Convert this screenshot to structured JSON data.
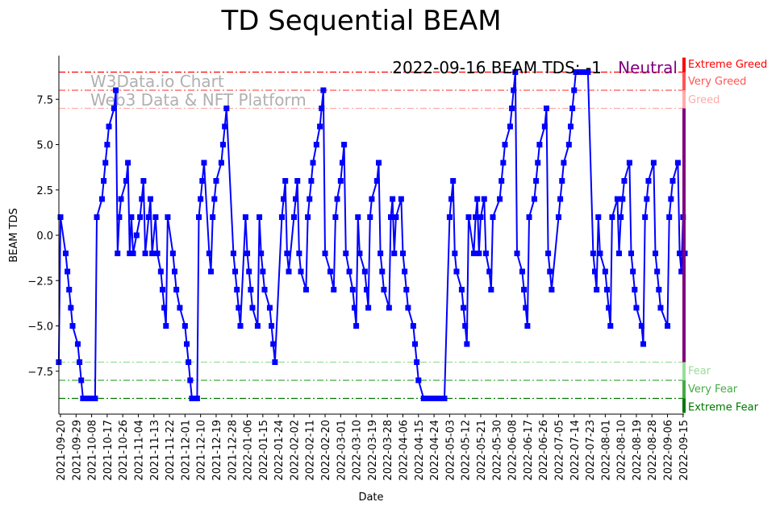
{
  "chart_data": {
    "type": "line",
    "title": "TD Sequential BEAM",
    "xlabel": "Date",
    "ylabel": "BEAM TDS",
    "ylim": [
      -9.8,
      9.8
    ],
    "yticks": [
      -7.5,
      -5.0,
      -2.5,
      0.0,
      2.5,
      5.0,
      7.5
    ],
    "ytick_labels": [
      "−7.5",
      "−5.0",
      "−2.5",
      "0.0",
      "2.5",
      "5.0",
      "7.5"
    ],
    "x_unit": "days since 2021-09-20",
    "xlim": [
      -1,
      362
    ],
    "xtick_days": [
      0,
      9,
      18,
      27,
      36,
      45,
      54,
      63,
      72,
      81,
      90,
      99,
      108,
      117,
      126,
      135,
      144,
      153,
      162,
      171,
      180,
      189,
      198,
      207,
      216,
      225,
      234,
      243,
      252,
      261,
      270,
      279,
      288,
      297,
      306,
      315,
      324,
      333,
      342,
      351,
      360
    ],
    "xtick_labels": [
      "2021-09-20",
      "2021-09-29",
      "2021-10-08",
      "2021-10-17",
      "2021-10-26",
      "2021-11-04",
      "2021-11-13",
      "2021-11-22",
      "2021-12-01",
      "2021-12-10",
      "2021-12-19",
      "2021-12-28",
      "2022-01-06",
      "2022-01-15",
      "2022-01-24",
      "2022-02-02",
      "2022-02-11",
      "2022-02-20",
      "2022-03-01",
      "2022-03-10",
      "2022-03-19",
      "2022-03-28",
      "2022-04-06",
      "2022-04-15",
      "2022-04-24",
      "2022-05-03",
      "2022-05-12",
      "2022-05-21",
      "2022-05-30",
      "2022-06-08",
      "2022-06-17",
      "2022-06-26",
      "2022-07-05",
      "2022-07-14",
      "2022-07-23",
      "2022-08-01",
      "2022-08-10",
      "2022-08-19",
      "2022-08-28",
      "2022-09-06",
      "2022-09-15"
    ],
    "series": [
      {
        "name": "BEAM TDS",
        "color": "#0000ff",
        "marker": "square",
        "points": [
          [
            -1,
            -7
          ],
          [
            0,
            1
          ],
          [
            3,
            -1
          ],
          [
            4,
            -2
          ],
          [
            5,
            -3
          ],
          [
            6,
            -4
          ],
          [
            7,
            -5
          ],
          [
            10,
            -6
          ],
          [
            11,
            -7
          ],
          [
            12,
            -8
          ],
          [
            13,
            -9
          ],
          [
            14,
            -9
          ],
          [
            15,
            -9
          ],
          [
            16,
            -9
          ],
          [
            17,
            -9
          ],
          [
            18,
            -9
          ],
          [
            19,
            -9
          ],
          [
            20,
            -9
          ],
          [
            21,
            1
          ],
          [
            24,
            2
          ],
          [
            25,
            3
          ],
          [
            26,
            4
          ],
          [
            27,
            5
          ],
          [
            28,
            6
          ],
          [
            31,
            7
          ],
          [
            32,
            8
          ],
          [
            33,
            -1
          ],
          [
            34,
            1
          ],
          [
            35,
            2
          ],
          [
            38,
            3
          ],
          [
            39,
            4
          ],
          [
            40,
            -1
          ],
          [
            41,
            1
          ],
          [
            42,
            -1
          ],
          [
            44,
            0
          ],
          [
            46,
            1
          ],
          [
            47,
            2
          ],
          [
            48,
            3
          ],
          [
            49,
            -1
          ],
          [
            51,
            1
          ],
          [
            52,
            2
          ],
          [
            53,
            -1
          ],
          [
            55,
            1
          ],
          [
            56,
            -1
          ],
          [
            58,
            -2
          ],
          [
            59,
            -3
          ],
          [
            60,
            -4
          ],
          [
            61,
            -5
          ],
          [
            62,
            1
          ],
          [
            65,
            -1
          ],
          [
            66,
            -2
          ],
          [
            67,
            -3
          ],
          [
            69,
            -4
          ],
          [
            72,
            -5
          ],
          [
            73,
            -6
          ],
          [
            74,
            -7
          ],
          [
            75,
            -8
          ],
          [
            76,
            -9
          ],
          [
            77,
            -9
          ],
          [
            78,
            -9
          ],
          [
            79,
            -9
          ],
          [
            80,
            1
          ],
          [
            81,
            2
          ],
          [
            82,
            3
          ],
          [
            83,
            4
          ],
          [
            86,
            -1
          ],
          [
            87,
            -2
          ],
          [
            88,
            1
          ],
          [
            89,
            2
          ],
          [
            90,
            3
          ],
          [
            93,
            4
          ],
          [
            94,
            5
          ],
          [
            95,
            6
          ],
          [
            96,
            7
          ],
          [
            100,
            -1
          ],
          [
            101,
            -2
          ],
          [
            102,
            -3
          ],
          [
            103,
            -4
          ],
          [
            104,
            -5
          ],
          [
            107,
            1
          ],
          [
            108,
            -1
          ],
          [
            109,
            -2
          ],
          [
            110,
            -3
          ],
          [
            111,
            -4
          ],
          [
            114,
            -5
          ],
          [
            115,
            1
          ],
          [
            116,
            -1
          ],
          [
            117,
            -2
          ],
          [
            118,
            -3
          ],
          [
            121,
            -4
          ],
          [
            122,
            -5
          ],
          [
            123,
            -6
          ],
          [
            124,
            -7
          ],
          [
            128,
            1
          ],
          [
            129,
            2
          ],
          [
            130,
            3
          ],
          [
            131,
            -1
          ],
          [
            132,
            -2
          ],
          [
            135,
            1
          ],
          [
            136,
            2
          ],
          [
            137,
            3
          ],
          [
            138,
            -1
          ],
          [
            139,
            -2
          ],
          [
            142,
            -3
          ],
          [
            143,
            1
          ],
          [
            144,
            2
          ],
          [
            145,
            3
          ],
          [
            146,
            4
          ],
          [
            148,
            5
          ],
          [
            150,
            6
          ],
          [
            151,
            7
          ],
          [
            152,
            8
          ],
          [
            153,
            -1
          ],
          [
            156,
            -2
          ],
          [
            158,
            -3
          ],
          [
            159,
            1
          ],
          [
            160,
            2
          ],
          [
            162,
            3
          ],
          [
            163,
            4
          ],
          [
            164,
            5
          ],
          [
            165,
            -1
          ],
          [
            167,
            -2
          ],
          [
            169,
            -3
          ],
          [
            170,
            -4
          ],
          [
            171,
            -5
          ],
          [
            172,
            1
          ],
          [
            173,
            -1
          ],
          [
            176,
            -2
          ],
          [
            177,
            -3
          ],
          [
            178,
            -4
          ],
          [
            179,
            1
          ],
          [
            180,
            2
          ],
          [
            183,
            3
          ],
          [
            184,
            4
          ],
          [
            185,
            -1
          ],
          [
            186,
            -2
          ],
          [
            187,
            -3
          ],
          [
            190,
            -4
          ],
          [
            191,
            1
          ],
          [
            192,
            2
          ],
          [
            193,
            -1
          ],
          [
            194,
            1
          ],
          [
            197,
            2
          ],
          [
            198,
            -1
          ],
          [
            199,
            -2
          ],
          [
            200,
            -3
          ],
          [
            201,
            -4
          ],
          [
            204,
            -5
          ],
          [
            205,
            -6
          ],
          [
            206,
            -7
          ],
          [
            207,
            -8
          ],
          [
            210,
            -9
          ],
          [
            212,
            -9
          ],
          [
            214,
            -9
          ],
          [
            216,
            -9
          ],
          [
            218,
            -9
          ],
          [
            220,
            -9
          ],
          [
            222,
            -9
          ],
          [
            225,
            1
          ],
          [
            226,
            2
          ],
          [
            227,
            3
          ],
          [
            228,
            -1
          ],
          [
            229,
            -2
          ],
          [
            232,
            -3
          ],
          [
            233,
            -4
          ],
          [
            234,
            -5
          ],
          [
            235,
            -6
          ],
          [
            236,
            1
          ],
          [
            239,
            -1
          ],
          [
            240,
            1
          ],
          [
            241,
            2
          ],
          [
            242,
            -1
          ],
          [
            243,
            1
          ],
          [
            245,
            2
          ],
          [
            246,
            -1
          ],
          [
            248,
            -2
          ],
          [
            249,
            -3
          ],
          [
            250,
            1
          ],
          [
            254,
            2
          ],
          [
            255,
            3
          ],
          [
            256,
            4
          ],
          [
            257,
            5
          ],
          [
            260,
            6
          ],
          [
            261,
            7
          ],
          [
            262,
            8
          ],
          [
            263,
            9
          ],
          [
            264,
            -1
          ],
          [
            267,
            -2
          ],
          [
            268,
            -3
          ],
          [
            269,
            -4
          ],
          [
            270,
            -5
          ],
          [
            271,
            1
          ],
          [
            274,
            2
          ],
          [
            275,
            3
          ],
          [
            276,
            4
          ],
          [
            277,
            5
          ],
          [
            280,
            6
          ],
          [
            281,
            7
          ],
          [
            282,
            -1
          ],
          [
            283,
            -2
          ],
          [
            284,
            -3
          ],
          [
            288,
            1
          ],
          [
            289,
            2
          ],
          [
            290,
            3
          ],
          [
            291,
            4
          ],
          [
            294,
            5
          ],
          [
            295,
            6
          ],
          [
            296,
            7
          ],
          [
            297,
            8
          ],
          [
            298,
            9
          ],
          [
            300,
            9
          ],
          [
            302,
            9
          ],
          [
            304,
            9
          ],
          [
            305,
            9
          ],
          [
            308,
            -1
          ],
          [
            309,
            -2
          ],
          [
            310,
            -3
          ],
          [
            311,
            1
          ],
          [
            312,
            -1
          ],
          [
            315,
            -2
          ],
          [
            316,
            -3
          ],
          [
            317,
            -4
          ],
          [
            318,
            -5
          ],
          [
            319,
            1
          ],
          [
            322,
            2
          ],
          [
            323,
            -1
          ],
          [
            324,
            1
          ],
          [
            325,
            2
          ],
          [
            326,
            3
          ],
          [
            329,
            4
          ],
          [
            330,
            -1
          ],
          [
            331,
            -2
          ],
          [
            332,
            -3
          ],
          [
            333,
            -4
          ],
          [
            336,
            -5
          ],
          [
            337,
            -6
          ],
          [
            338,
            1
          ],
          [
            339,
            2
          ],
          [
            340,
            3
          ],
          [
            343,
            4
          ],
          [
            344,
            -1
          ],
          [
            345,
            -2
          ],
          [
            346,
            -3
          ],
          [
            347,
            -4
          ],
          [
            351,
            -5
          ],
          [
            352,
            1
          ],
          [
            353,
            2
          ],
          [
            354,
            3
          ],
          [
            357,
            4
          ],
          [
            358,
            -1
          ],
          [
            359,
            -2
          ],
          [
            360,
            1
          ],
          [
            361,
            -1
          ]
        ]
      }
    ],
    "reference_lines": [
      {
        "value": 9,
        "label": "Extreme Greed",
        "color": "#ff0000"
      },
      {
        "value": 8,
        "label": "Very Greed",
        "color": "#ff5555"
      },
      {
        "value": 7,
        "label": "Greed",
        "color": "#ffaaaa"
      },
      {
        "value": -7,
        "label": "Fear",
        "color": "#99dd99"
      },
      {
        "value": -8,
        "label": "Very Fear",
        "color": "#44aa44"
      },
      {
        "value": -9,
        "label": "Extreme Fear",
        "color": "#007700"
      }
    ],
    "sentiment_bar": [
      {
        "from": 9,
        "to": 9.8,
        "color": "#ff0000"
      },
      {
        "from": 8,
        "to": 9,
        "color": "#ff5555"
      },
      {
        "from": 7,
        "to": 8,
        "color": "#ffaaaa"
      },
      {
        "from": -7,
        "to": 7,
        "color": "#800080"
      },
      {
        "from": -8,
        "to": -7,
        "color": "#99dd99"
      },
      {
        "from": -9,
        "to": -8,
        "color": "#44aa44"
      },
      {
        "from": -9.8,
        "to": -9,
        "color": "#007700"
      }
    ],
    "annotation": {
      "text": "2022-09-16 BEAM TDS: -1",
      "status": "Neutral",
      "status_color": "#800080"
    },
    "watermark": [
      "W3Data.io Chart",
      "Web3 Data & NFT Platform"
    ]
  }
}
